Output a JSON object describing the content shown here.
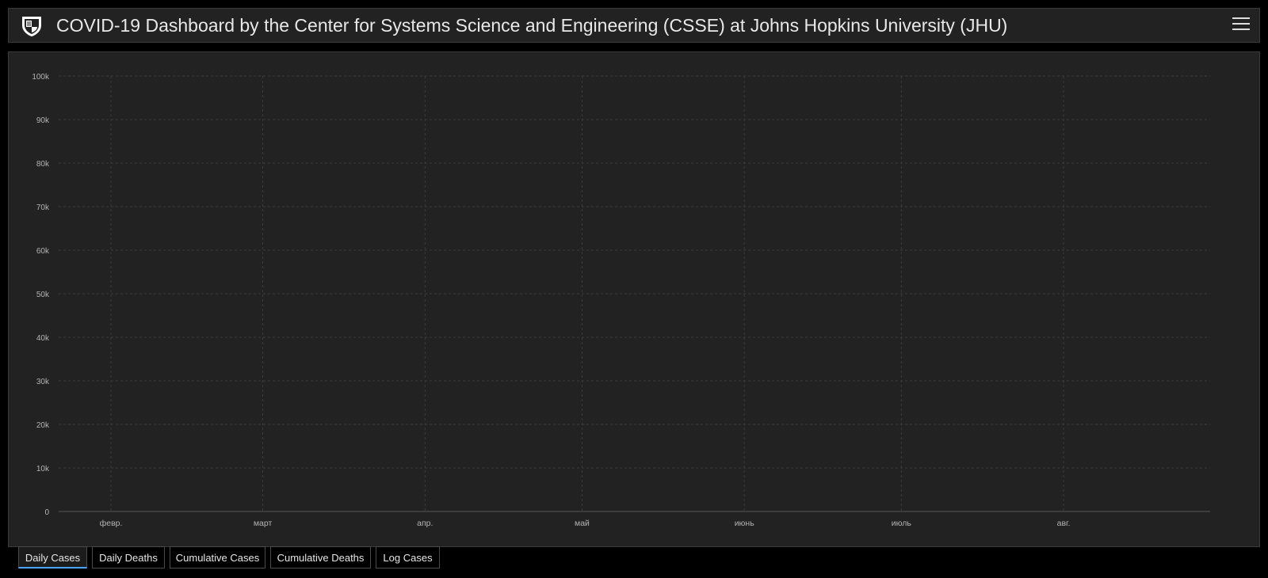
{
  "header": {
    "title": "COVID-19 Dashboard by the Center for Systems Science and Engineering (CSSE) at Johns Hopkins University (JHU)"
  },
  "icons": {
    "logo": "shield-logo-icon",
    "menu": "hamburger-menu-icon"
  },
  "colors": {
    "bar": "#FFAA00",
    "background": "#222222",
    "page": "#000000",
    "grid": "#3c3c3c",
    "tick_text": "#b4b4b4",
    "active_tab": "#4aa3ff"
  },
  "tabs": {
    "items": [
      "Daily Cases",
      "Daily Deaths",
      "Cumulative Cases",
      "Cumulative Deaths",
      "Log Cases"
    ],
    "active": 0
  },
  "chart_data": {
    "type": "bar",
    "title": "",
    "xlabel": "",
    "ylabel": "",
    "ylim": [
      0,
      100000
    ],
    "yticks": [
      0,
      10000,
      20000,
      30000,
      40000,
      50000,
      60000,
      70000,
      80000,
      90000,
      100000
    ],
    "ytick_labels": [
      "0",
      "10k",
      "20k",
      "30k",
      "40k",
      "50k",
      "60k",
      "70k",
      "80k",
      "90k",
      "100k"
    ],
    "xlim": [
      "2020-01-22",
      "2020-08-29"
    ],
    "x_ticks": [
      {
        "label": "февр.",
        "date": "2020-02-01"
      },
      {
        "label": "март",
        "date": "2020-03-01"
      },
      {
        "label": "апр.",
        "date": "2020-04-01"
      },
      {
        "label": "май",
        "date": "2020-05-01"
      },
      {
        "label": "июнь",
        "date": "2020-06-01"
      },
      {
        "label": "июль",
        "date": "2020-07-01"
      },
      {
        "label": "авг.",
        "date": "2020-08-01"
      }
    ],
    "grid": true,
    "legend": "none",
    "series": [
      {
        "start_date": "2020-01-22",
        "values": [
          0,
          0,
          0,
          0,
          0,
          0,
          0,
          0,
          0,
          0,
          0,
          0,
          0,
          0,
          0,
          0,
          0,
          0,
          0,
          0,
          0,
          0,
          0,
          0,
          0,
          0,
          0,
          0,
          0,
          0,
          0,
          0,
          0,
          0,
          0,
          0,
          0,
          0,
          0,
          0,
          0,
          0,
          0,
          0,
          0,
          0,
          0,
          0,
          0,
          0,
          0,
          0,
          0,
          0,
          0,
          0,
          0,
          0,
          0,
          0,
          0,
          0,
          0,
          0,
          0,
          0,
          0,
          0,
          0,
          0,
          0,
          0,
          0,
          0,
          0,
          0,
          0,
          0,
          0,
          0,
          0,
          0,
          0,
          0,
          0,
          0,
          0,
          0,
          0,
          0,
          0,
          0,
          0,
          0,
          0,
          0,
          0,
          0,
          0,
          0,
          0,
          0,
          0,
          0,
          0,
          0,
          0,
          0,
          0,
          0,
          0,
          0,
          0,
          0,
          0,
          0,
          0,
          0,
          0,
          0,
          0,
          0,
          0,
          0,
          0,
          0,
          0,
          0,
          0,
          0,
          0,
          0,
          0,
          0,
          0,
          0,
          0,
          0,
          0,
          0,
          0,
          0,
          0,
          0,
          0,
          0,
          0,
          0,
          0,
          0,
          0,
          0,
          0,
          0,
          0,
          0,
          0,
          0,
          0,
          0,
          0,
          0,
          0,
          0,
          0,
          0,
          0,
          0,
          0,
          0,
          0,
          0,
          0,
          0,
          0,
          0,
          0,
          0,
          0,
          0,
          0,
          0,
          0,
          0,
          0,
          0,
          0,
          0,
          0,
          0,
          0,
          0,
          0,
          0,
          0,
          0,
          0,
          0,
          0,
          0,
          0,
          0,
          0,
          0,
          0,
          0,
          0,
          0,
          0,
          0,
          0,
          0,
          0,
          0,
          0,
          0,
          0,
          0,
          0,
          0,
          0,
          0,
          0
        ]
      }
    ]
  }
}
